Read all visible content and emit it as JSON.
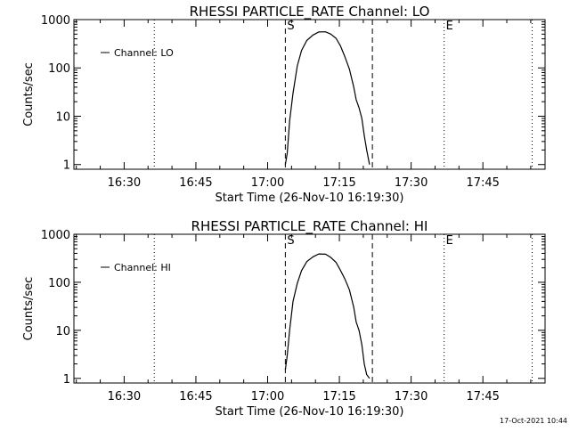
{
  "chart_data": [
    {
      "type": "line",
      "title": "RHESSI PARTICLE_RATE Channel: LO",
      "xlabel": "Start Time (26-Nov-10 16:19:30)",
      "ylabel": "Counts/sec",
      "yscale": "log",
      "ylim": [
        0.8,
        1000
      ],
      "xlim_minutes": [
        0,
        98.5
      ],
      "x_ticks": [
        {
          "label": "16:30",
          "min": 10.5
        },
        {
          "label": "16:45",
          "min": 25.5
        },
        {
          "label": "17:00",
          "min": 40.5
        },
        {
          "label": "17:15",
          "min": 55.5
        },
        {
          "label": "17:30",
          "min": 70.5
        },
        {
          "label": "17:45",
          "min": 85.5
        }
      ],
      "y_ticks": [
        {
          "label": "1",
          "value": 1
        },
        {
          "label": "10",
          "value": 10
        },
        {
          "label": "100",
          "value": 100
        },
        {
          "label": "1000",
          "value": 1000
        }
      ],
      "legend": "Channel: LO",
      "vlines": [
        {
          "min": 16.8,
          "style": "dotted",
          "label": ""
        },
        {
          "min": 44.2,
          "style": "dashed",
          "label": "S"
        },
        {
          "min": 62.4,
          "style": "dashed",
          "label": ""
        },
        {
          "min": 77.4,
          "style": "dotted",
          "label": "E"
        },
        {
          "min": 95.8,
          "style": "dotted",
          "label": ""
        }
      ],
      "series": [
        {
          "name": "Channel: LO",
          "x": [
            44.2,
            44.6,
            45.1,
            45.8,
            46.7,
            47.6,
            48.7,
            50.0,
            51.2,
            52.6,
            53.7,
            54.8,
            55.7,
            56.6,
            57.6,
            58.5,
            59.0,
            59.6,
            60.2,
            60.7,
            61.2,
            61.8
          ],
          "y": [
            1.0,
            1.7,
            8,
            30,
            110,
            230,
            370,
            480,
            555,
            560,
            500,
            410,
            290,
            175,
            95,
            40,
            22,
            15,
            9,
            4,
            2,
            1.0
          ]
        }
      ]
    },
    {
      "type": "line",
      "title": "RHESSI PARTICLE_RATE Channel: HI",
      "xlabel": "Start Time (26-Nov-10 16:19:30)",
      "ylabel": "Counts/sec",
      "yscale": "log",
      "ylim": [
        0.8,
        1000
      ],
      "xlim_minutes": [
        0,
        98.5
      ],
      "x_ticks": [
        {
          "label": "16:30",
          "min": 10.5
        },
        {
          "label": "16:45",
          "min": 25.5
        },
        {
          "label": "17:00",
          "min": 40.5
        },
        {
          "label": "17:15",
          "min": 55.5
        },
        {
          "label": "17:30",
          "min": 70.5
        },
        {
          "label": "17:45",
          "min": 85.5
        }
      ],
      "y_ticks": [
        {
          "label": "1",
          "value": 1
        },
        {
          "label": "10",
          "value": 10
        },
        {
          "label": "100",
          "value": 100
        },
        {
          "label": "1000",
          "value": 1000
        }
      ],
      "legend": "Channel: HI",
      "vlines": [
        {
          "min": 16.8,
          "style": "dotted",
          "label": ""
        },
        {
          "min": 44.2,
          "style": "dashed",
          "label": "S"
        },
        {
          "min": 62.4,
          "style": "dashed",
          "label": ""
        },
        {
          "min": 77.4,
          "style": "dotted",
          "label": "E"
        },
        {
          "min": 95.8,
          "style": "dotted",
          "label": ""
        }
      ],
      "series": [
        {
          "name": "Channel: HI",
          "x": [
            44.2,
            44.6,
            45.1,
            45.8,
            46.7,
            47.6,
            48.7,
            50.0,
            51.2,
            52.6,
            53.7,
            54.8,
            55.7,
            56.6,
            57.6,
            58.5,
            59.0,
            59.6,
            60.2,
            60.7,
            61.2,
            61.8
          ],
          "y": [
            1.5,
            3,
            10,
            40,
            95,
            175,
            270,
            340,
            390,
            385,
            330,
            260,
            180,
            120,
            70,
            30,
            15,
            10,
            5,
            2,
            1.2,
            1.0
          ]
        }
      ]
    }
  ],
  "footer": {
    "timestamp": "17-Oct-2021 10:44"
  }
}
